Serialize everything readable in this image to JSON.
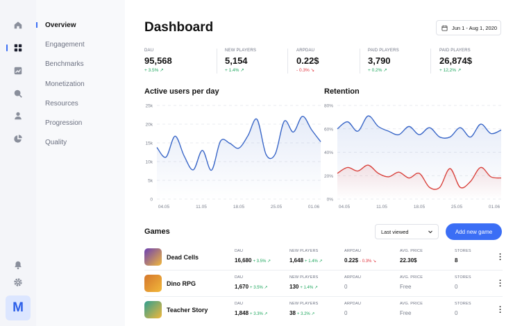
{
  "sidebar": {
    "rail_icons": [
      "home-icon",
      "grid-icon",
      "chart-icon",
      "search-icon",
      "user-icon",
      "pie-icon",
      "bell-icon",
      "gear-icon"
    ],
    "avatar_letter": "M",
    "items": [
      {
        "label": "Overview",
        "active": true
      },
      {
        "label": "Engagement"
      },
      {
        "label": "Benchmarks"
      },
      {
        "label": "Monetization"
      },
      {
        "label": "Resources"
      },
      {
        "label": "Progression"
      },
      {
        "label": "Quality"
      }
    ]
  },
  "header": {
    "title": "Dashboard",
    "date_range": "Jun 1 - Aug 1, 2020"
  },
  "kpis": [
    {
      "label": "DAU",
      "value": "95,568",
      "change": "+ 3.5%",
      "dir": "up"
    },
    {
      "label": "NEW PLAYERS",
      "value": "5,154",
      "change": "+ 1.4%",
      "dir": "up"
    },
    {
      "label": "ARPDAU",
      "value": "0.22$",
      "change": "- 0.3%",
      "dir": "down"
    },
    {
      "label": "PAID PLAYERS",
      "value": "3,790",
      "change": "+ 0.2%",
      "dir": "up"
    },
    {
      "label": "PAID PLAYERS",
      "value": "26,874$",
      "change": "+ 12,2%",
      "dir": "up"
    }
  ],
  "chart_data": [
    {
      "type": "area",
      "title": "Active users per day",
      "x_ticks": [
        "04.05",
        "11.05",
        "18.05",
        "25.05",
        "01.06"
      ],
      "y_ticks": [
        "0",
        "5k",
        "10k",
        "15k",
        "20k",
        "25k"
      ],
      "ylim": [
        0,
        25000
      ],
      "series": [
        {
          "color": "#3a67c8",
          "values": [
            13800,
            11200,
            16800,
            11500,
            7800,
            13000,
            7700,
            15500,
            14900,
            13600,
            16900,
            21300,
            11900,
            12000,
            20800,
            17900,
            22100,
            18500,
            15300
          ]
        }
      ]
    },
    {
      "type": "area",
      "title": "Retention",
      "x_ticks": [
        "04.05",
        "11.05",
        "18.05",
        "25.05",
        "01.06"
      ],
      "y_ticks": [
        "0%",
        "20%",
        "40%",
        "60%",
        "80%"
      ],
      "ylim": [
        0,
        80
      ],
      "series": [
        {
          "color": "#3a67c8",
          "values": [
            60,
            66,
            58,
            71,
            62,
            58,
            55,
            62,
            55,
            61,
            53,
            53,
            61,
            53,
            64,
            56,
            59
          ]
        },
        {
          "color": "#d9423d",
          "values": [
            22,
            27,
            24,
            29,
            22,
            19,
            23,
            18,
            22,
            10,
            10,
            26,
            10,
            15,
            27,
            19,
            18
          ]
        }
      ]
    }
  ],
  "games": {
    "title": "Games",
    "sort_select": "Last viewed",
    "add_button": "Add new game",
    "columns": [
      "DAU",
      "NEW PLAYERS",
      "ARPDAU",
      "AVG. PRICE",
      "STORES"
    ],
    "rows": [
      {
        "name": "Dead Cells",
        "thumb_color": "#6a3fb4",
        "dau": "16,680",
        "dau_chg": "+ 3.5%",
        "new_players": "1,648",
        "np_chg": "+ 1.4%",
        "arpdau": "0.22$",
        "arpdau_chg": "- 0.3%",
        "price": "22.30$",
        "stores": "8",
        "bold_values": true
      },
      {
        "name": "Dino RPG",
        "thumb_color": "#d4762c",
        "dau": "1,670",
        "dau_chg": "+ 3.5%",
        "new_players": "130",
        "np_chg": "+ 1.4%",
        "arpdau": "0",
        "arpdau_chg": "",
        "price": "Free",
        "stores": "0",
        "bold_values": false
      },
      {
        "name": "Teacher Story",
        "thumb_color": "#2f9e8f",
        "dau": "1,848",
        "dau_chg": "+ 3.3%",
        "new_players": "38",
        "np_chg": "+ 3.2%",
        "arpdau": "0",
        "arpdau_chg": "",
        "price": "Free",
        "stores": "0",
        "bold_values": false
      }
    ]
  }
}
